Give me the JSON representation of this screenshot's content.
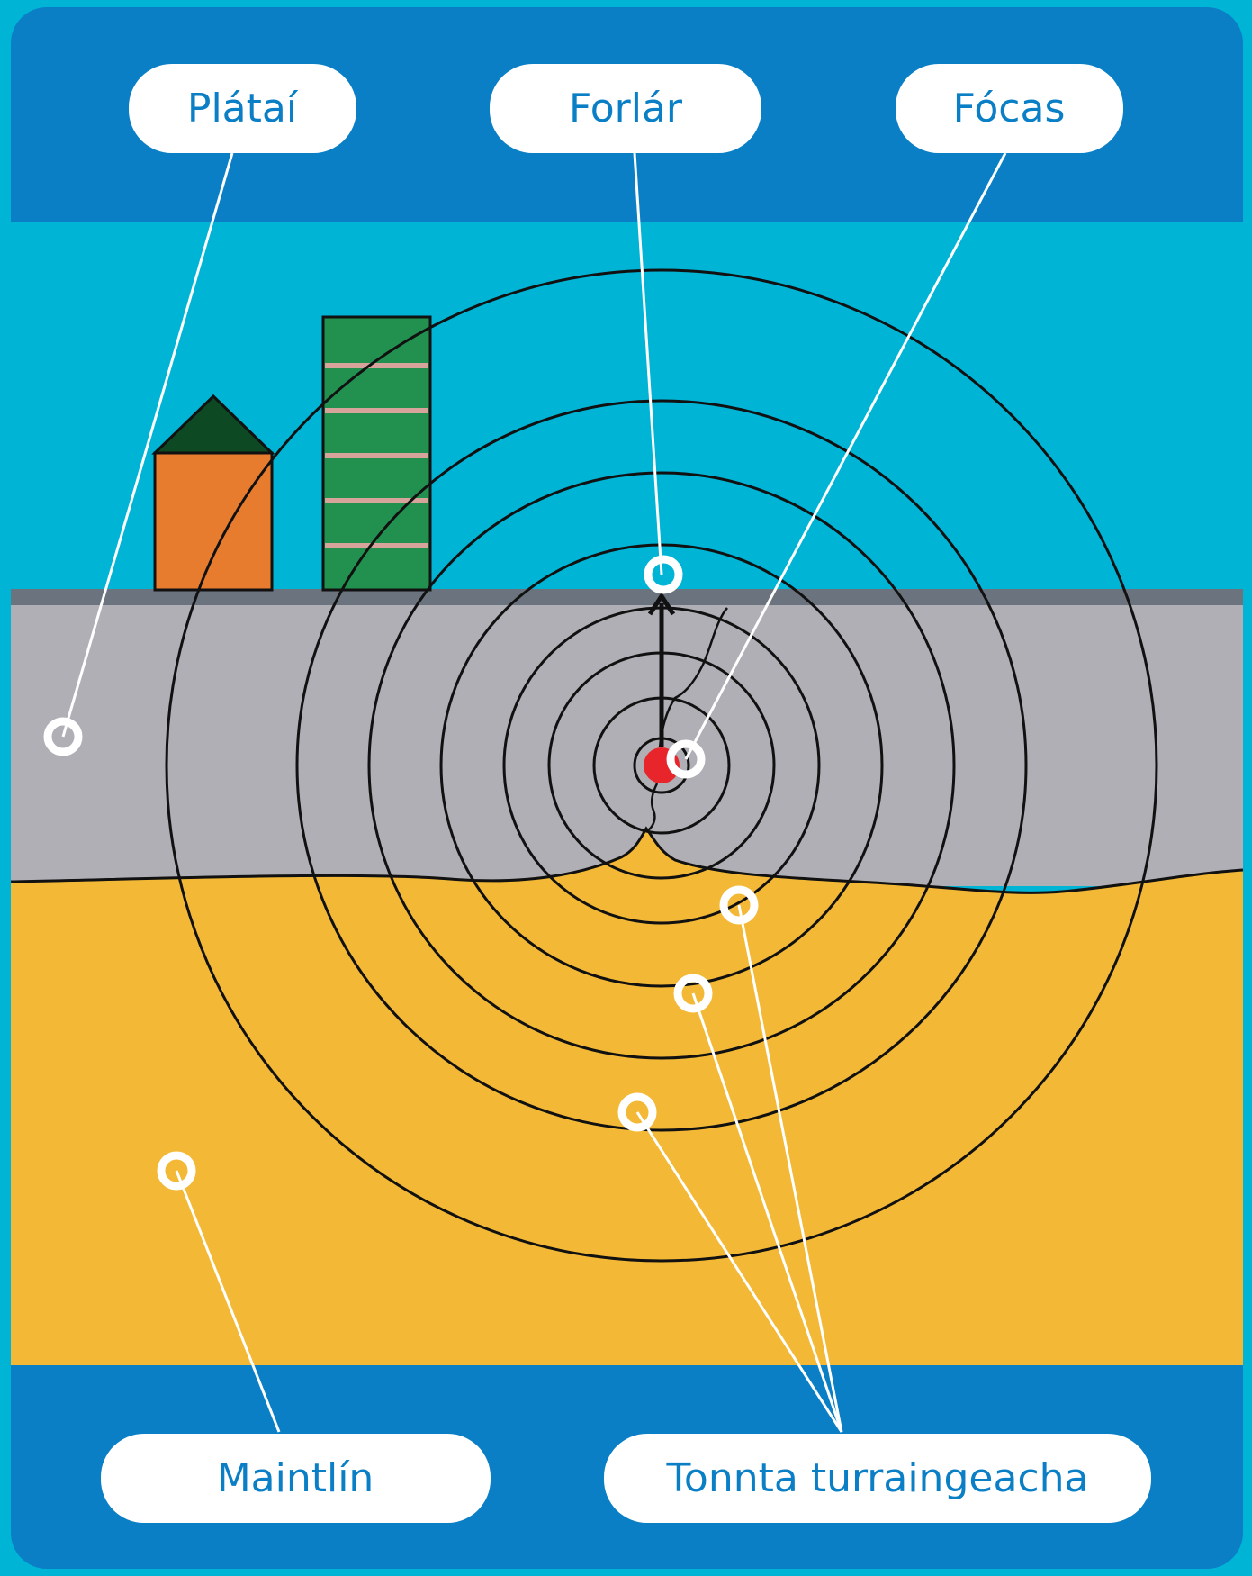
{
  "diagram": {
    "labels": {
      "plates": "Plátaí",
      "epicentre": "Forlár",
      "focus": "Fócas",
      "mantle": "Maintlín",
      "shock_waves": "Tonnta turraingeacha"
    },
    "colors": {
      "outer_background": "#00b4d6",
      "header_band": "#0a7fc6",
      "sky": "#00b4d6",
      "crust": "#afafb5",
      "crust_top": "#6a737e",
      "mantle": "#f3b936",
      "label_text": "#0a7fc6",
      "focus_dot": "#e8252a",
      "house_wall": "#e77c2f",
      "house_roof": "#0d4a24",
      "tower": "#229150",
      "tower_stripe": "#d6a49a"
    }
  }
}
